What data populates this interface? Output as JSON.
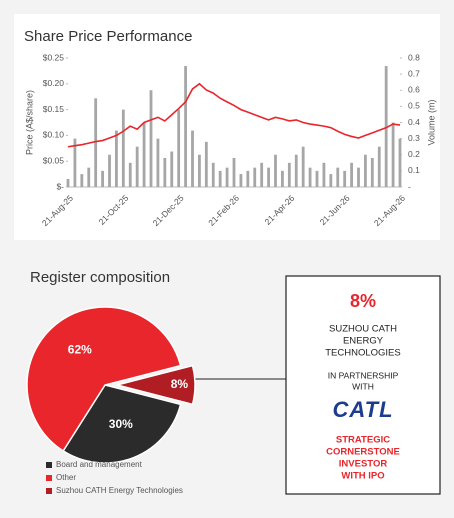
{
  "chart_data": [
    {
      "type": "combo",
      "title": "Share Price Performance",
      "y_label": "Price (A$/share)",
      "y2_label": "Volume (m)",
      "categories": [
        "21-Aug-25",
        null,
        null,
        null,
        null,
        null,
        null,
        null,
        "21-Oct-25",
        null,
        null,
        null,
        null,
        null,
        null,
        null,
        "21-Dec-25",
        null,
        null,
        null,
        null,
        null,
        null,
        null,
        "21-Feb-26",
        null,
        null,
        null,
        null,
        null,
        null,
        null,
        "21-Apr-26",
        null,
        null,
        null,
        null,
        null,
        null,
        null,
        "21-Jun-26",
        null,
        null,
        null,
        null,
        null,
        null,
        null,
        "21-Aug-26"
      ],
      "series": [
        {
          "kind": "bar",
          "axis": "y2",
          "color": "#a6a6a6",
          "values": [
            0.05,
            0.3,
            0.08,
            0.12,
            0.55,
            0.1,
            0.2,
            0.35,
            0.48,
            0.15,
            0.25,
            0.4,
            0.6,
            0.3,
            0.18,
            0.22,
            0.48,
            0.75,
            0.35,
            0.2,
            0.28,
            0.15,
            0.1,
            0.12,
            0.18,
            0.08,
            0.1,
            0.12,
            0.15,
            0.12,
            0.2,
            0.1,
            0.15,
            0.2,
            0.25,
            0.12,
            0.1,
            0.15,
            0.08,
            0.12,
            0.1,
            0.15,
            0.12,
            0.2,
            0.18,
            0.25,
            0.75,
            0.4,
            0.3
          ]
        },
        {
          "kind": "line",
          "color": "#e8262b",
          "values": [
            0.078,
            0.08,
            0.082,
            0.085,
            0.088,
            0.09,
            0.095,
            0.1,
            0.108,
            0.118,
            0.112,
            0.125,
            0.13,
            0.135,
            0.128,
            0.14,
            0.152,
            0.165,
            0.19,
            0.2,
            0.188,
            0.182,
            0.172,
            0.165,
            0.158,
            0.15,
            0.145,
            0.14,
            0.135,
            0.13,
            0.135,
            0.132,
            0.128,
            0.13,
            0.125,
            0.122,
            0.12,
            0.118,
            0.115,
            0.108,
            0.102,
            0.098,
            0.095,
            0.1,
            0.105,
            0.11,
            0.115,
            0.122,
            0.12
          ]
        }
      ],
      "ylim": [
        0,
        0.25
      ],
      "yticks": [
        {
          "value": 0,
          "label": "$-"
        },
        {
          "value": 0.05,
          "label": "$0.05"
        },
        {
          "value": 0.1,
          "label": "$0.10"
        },
        {
          "value": 0.15,
          "label": "$0.15"
        },
        {
          "value": 0.2,
          "label": "$0.20"
        },
        {
          "value": 0.25,
          "label": "$0.25"
        }
      ],
      "y2lim": [
        0,
        0.8
      ],
      "y2ticks": [
        {
          "value": 0,
          "label": "-"
        },
        0.1,
        0.2,
        0.3,
        0.4,
        0.5,
        0.6,
        0.7,
        0.8
      ]
    },
    {
      "type": "pie",
      "title": "Register composition",
      "categories": [
        "Board and management",
        "Other",
        "Suzhou CATH Energy Technologies"
      ],
      "values": [
        30,
        62,
        8
      ],
      "value_labels": [
        "30%",
        "62%",
        "8%"
      ],
      "colors": [
        "#2b2b2b",
        "#e8262b",
        "#b01e23"
      ],
      "exploded": 2,
      "legend": "bottom-left"
    }
  ],
  "callout": {
    "percent": "8%",
    "company": [
      "SUZHOU CATH",
      "ENERGY",
      "TECHNOLOGIES"
    ],
    "partner": [
      "IN PARTNERSHIP",
      "WITH"
    ],
    "logo": "CATL",
    "role": [
      "STRATEGIC",
      "CORNERSTONE",
      "INVESTOR",
      "WITH IPO"
    ]
  }
}
